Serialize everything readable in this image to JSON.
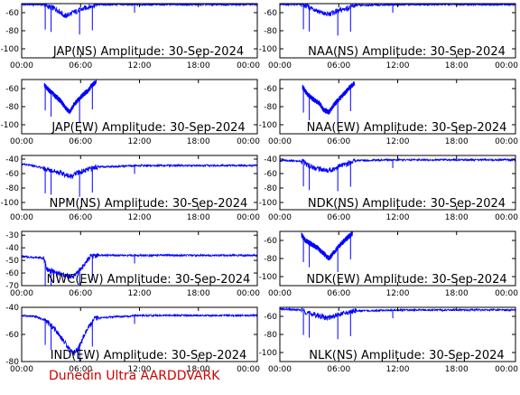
{
  "footer": {
    "credit": "Dunedin Ultra AARDDVARK",
    "credit_color": "#d00000"
  },
  "style": {
    "trace_color": "#0000ff",
    "axis_color": "#000000",
    "background": "#ffffff"
  },
  "chart_data": [
    {
      "type": "line",
      "title": "JAP(NS) Amplitude: 30-Sep-2024",
      "xlim": [
        0,
        24
      ],
      "ylim": [
        -110,
        -50
      ],
      "xticks": [
        0,
        6,
        12,
        18,
        24
      ],
      "xtick_labels": [
        "00:00",
        "06:00",
        "12:00",
        "18:00",
        "00:00"
      ],
      "yticks": [
        -100,
        -80,
        -60
      ],
      "ytick_labels": [
        "-100",
        "-80",
        "-60"
      ],
      "series": [
        {
          "x": [
            0,
            2.3,
            2.6,
            3.5,
            4.0,
            4.4,
            4.8,
            5.2,
            5.7,
            6.2,
            6.7,
            7.1,
            7.5,
            12,
            18,
            24
          ],
          "y": [
            -51,
            -51,
            -53,
            -56,
            -60,
            -64,
            -62,
            -60,
            -58,
            -56,
            -54,
            -53,
            -51,
            -51,
            -51,
            -51
          ]
        }
      ]
    },
    {
      "type": "line",
      "title": "NAA(NS) Amplitude: 30-Sep-2024",
      "xlim": [
        0,
        24
      ],
      "ylim": [
        -110,
        -50
      ],
      "xticks": [
        0,
        6,
        12,
        18,
        24
      ],
      "xtick_labels": [
        "00:00",
        "06:00",
        "12:00",
        "18:00",
        "00:00"
      ],
      "yticks": [
        -100,
        -80,
        -60
      ],
      "ytick_labels": [
        "-100",
        "-80",
        "-60"
      ],
      "series": [
        {
          "x": [
            0,
            2.3,
            2.8,
            3.5,
            4.2,
            4.8,
            5.4,
            6.0,
            6.6,
            7.2,
            7.6,
            12,
            18,
            24
          ],
          "y": [
            -51,
            -51,
            -53,
            -56,
            -60,
            -62,
            -60,
            -58,
            -56,
            -54,
            -52,
            -51,
            -51,
            -51
          ]
        }
      ]
    },
    {
      "type": "line",
      "title": "JAP(EW) Amplitude: 30-Sep-2024",
      "xlim": [
        0,
        24
      ],
      "ylim": [
        -110,
        -50
      ],
      "xticks": [
        0,
        6,
        12,
        18,
        24
      ],
      "xtick_labels": [
        "00:00",
        "06:00",
        "12:00",
        "18:00",
        "00:00"
      ],
      "yticks": [
        -100,
        -80,
        -60
      ],
      "ytick_labels": [
        "-100",
        "-80",
        "-60"
      ],
      "series": [
        {
          "x": [
            2.3,
            2.8,
            3.4,
            4.0,
            4.5,
            4.9,
            5.3,
            5.8,
            6.3,
            6.8,
            7.2,
            7.6
          ],
          "y": [
            -56,
            -62,
            -68,
            -74,
            -82,
            -86,
            -78,
            -72,
            -66,
            -62,
            -56,
            -52
          ]
        }
      ]
    },
    {
      "type": "line",
      "title": "NAA(EW) Amplitude: 30-Sep-2024",
      "xlim": [
        0,
        24
      ],
      "ylim": [
        -110,
        -50
      ],
      "xticks": [
        0,
        6,
        12,
        18,
        24
      ],
      "xtick_labels": [
        "00:00",
        "06:00",
        "12:00",
        "18:00",
        "00:00"
      ],
      "yticks": [
        -100,
        -80,
        -60
      ],
      "ytick_labels": [
        "-100",
        "-80",
        "-60"
      ],
      "series": [
        {
          "x": [
            2.3,
            2.8,
            3.4,
            4.0,
            4.5,
            5.0,
            5.5,
            6.0,
            6.5,
            7.0,
            7.6
          ],
          "y": [
            -58,
            -66,
            -72,
            -76,
            -84,
            -86,
            -78,
            -72,
            -66,
            -60,
            -54
          ]
        }
      ]
    },
    {
      "type": "line",
      "title": "NPM(NS) Amplitude: 30-Sep-2024",
      "xlim": [
        0,
        24
      ],
      "ylim": [
        -110,
        -35
      ],
      "xticks": [
        0,
        6,
        12,
        18,
        24
      ],
      "xtick_labels": [
        "00:00",
        "06:00",
        "12:00",
        "18:00",
        "00:00"
      ],
      "yticks": [
        -100,
        -80,
        -60,
        -40
      ],
      "ytick_labels": [
        "-100",
        "-80",
        "-60",
        "-40"
      ],
      "series": [
        {
          "x": [
            0,
            1.5,
            2.5,
            3.5,
            4.5,
            5.0,
            5.5,
            6.5,
            7.5,
            12,
            18,
            24
          ],
          "y": [
            -47,
            -50,
            -54,
            -57,
            -62,
            -64,
            -60,
            -56,
            -51,
            -49,
            -49,
            -49
          ]
        }
      ]
    },
    {
      "type": "line",
      "title": "NDK(NS) Amplitude: 30-Sep-2024",
      "xlim": [
        0,
        24
      ],
      "ylim": [
        -110,
        -35
      ],
      "xticks": [
        0,
        6,
        12,
        18,
        24
      ],
      "xtick_labels": [
        "00:00",
        "06:00",
        "12:00",
        "18:00",
        "00:00"
      ],
      "yticks": [
        -100,
        -80,
        -60,
        -40
      ],
      "ytick_labels": [
        "-100",
        "-80",
        "-60",
        "-40"
      ],
      "series": [
        {
          "x": [
            0,
            2.3,
            2.8,
            3.5,
            4.2,
            4.8,
            5.4,
            6.0,
            6.8,
            7.6,
            12,
            18,
            24
          ],
          "y": [
            -42,
            -43,
            -48,
            -52,
            -54,
            -56,
            -54,
            -50,
            -47,
            -42,
            -41,
            -41,
            -41
          ]
        }
      ]
    },
    {
      "type": "line",
      "title": "NWC(EW) Amplitude: 30-Sep-2024",
      "xlim": [
        0,
        24
      ],
      "ylim": [
        -70,
        -27
      ],
      "xticks": [
        0,
        6,
        12,
        18,
        24
      ],
      "xtick_labels": [
        "00:00",
        "06:00",
        "12:00",
        "18:00",
        "00:00"
      ],
      "yticks": [
        -70,
        -60,
        -50,
        -40,
        -30
      ],
      "ytick_labels": [
        "-70",
        "-60",
        "-50",
        "-40",
        "-30"
      ],
      "series": [
        {
          "x": [
            0,
            2.2,
            2.6,
            3.5,
            4.5,
            5.2,
            5.6,
            6.0,
            6.5,
            7.0,
            7.5,
            12,
            18,
            24
          ],
          "y": [
            -47,
            -48,
            -57,
            -60,
            -62,
            -63,
            -60,
            -57,
            -52,
            -47,
            -46,
            -46,
            -46,
            -46
          ]
        }
      ]
    },
    {
      "type": "line",
      "title": "NDK(EW) Amplitude: 30-Sep-2024",
      "xlim": [
        0,
        24
      ],
      "ylim": [
        -110,
        -50
      ],
      "xticks": [
        0,
        6,
        12,
        18,
        24
      ],
      "xtick_labels": [
        "00:00",
        "06:00",
        "12:00",
        "18:00",
        "00:00"
      ],
      "yticks": [
        -100,
        -80,
        -60
      ],
      "ytick_labels": [
        "-100",
        "-80",
        "-60"
      ],
      "series": [
        {
          "x": [
            2.2,
            2.6,
            3.2,
            3.8,
            4.4,
            5.0,
            5.6,
            6.2,
            6.8,
            7.4
          ],
          "y": [
            -54,
            -60,
            -64,
            -68,
            -74,
            -80,
            -72,
            -64,
            -58,
            -52
          ]
        }
      ]
    },
    {
      "type": "line",
      "title": "IND(EW) Amplitude: 30-Sep-2024",
      "xlim": [
        0,
        24
      ],
      "ylim": [
        -80,
        -40
      ],
      "xticks": [
        0,
        6,
        12,
        18,
        24
      ],
      "xtick_labels": [
        "00:00",
        "06:00",
        "12:00",
        "18:00",
        "00:00"
      ],
      "yticks": [
        -80,
        -60,
        -40
      ],
      "ytick_labels": [
        "-80",
        "-60",
        "-40"
      ],
      "series": [
        {
          "x": [
            0,
            1.5,
            2.5,
            3.5,
            4.2,
            4.8,
            5.3,
            5.8,
            6.3,
            6.8,
            7.5,
            12,
            18,
            24
          ],
          "y": [
            -46,
            -47,
            -50,
            -57,
            -64,
            -70,
            -74,
            -70,
            -62,
            -55,
            -48,
            -46,
            -46,
            -46
          ]
        }
      ]
    },
    {
      "type": "line",
      "title": "NLK(NS) Amplitude: 30-Sep-2024",
      "xlim": [
        0,
        24
      ],
      "ylim": [
        -110,
        -50
      ],
      "xticks": [
        0,
        6,
        12,
        18,
        24
      ],
      "xtick_labels": [
        "00:00",
        "06:00",
        "12:00",
        "18:00",
        "00:00"
      ],
      "yticks": [
        -100,
        -80,
        -60
      ],
      "ytick_labels": [
        "-100",
        "-80",
        "-60"
      ],
      "series": [
        {
          "x": [
            0,
            2.3,
            2.8,
            3.5,
            4.2,
            4.8,
            5.4,
            6.0,
            6.8,
            7.6,
            12,
            18,
            24
          ],
          "y": [
            -52,
            -53,
            -56,
            -58,
            -60,
            -62,
            -60,
            -58,
            -56,
            -54,
            -53,
            -53,
            -53
          ]
        }
      ]
    }
  ]
}
